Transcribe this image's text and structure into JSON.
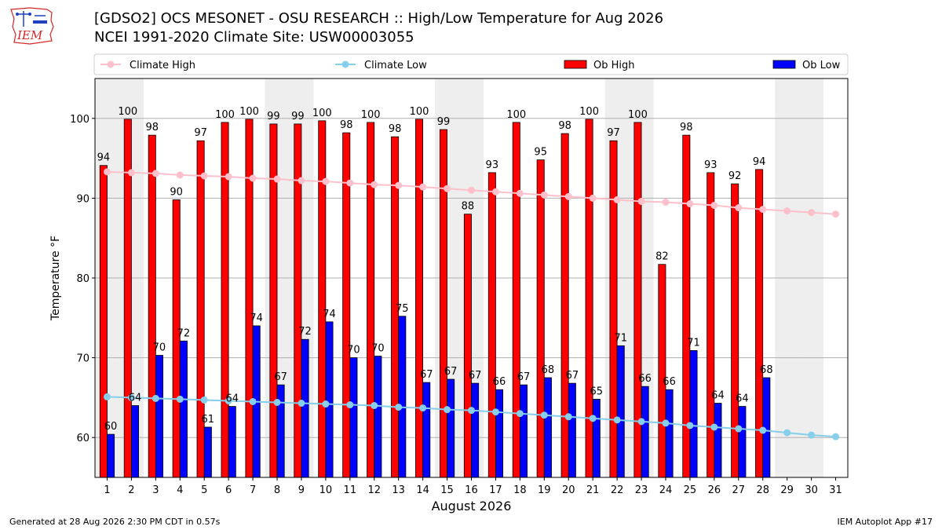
{
  "header": {
    "title_line1": "[GDSO2] OCS MESONET - OSU RESEARCH :: High/Low Temperature for Aug 2026",
    "title_line2": "NCEI 1991-2020 Climate Site: USW00003055",
    "logo_text": "IEM"
  },
  "footer": {
    "left": "Generated at 28 Aug 2026 2:30 PM CDT in 0.57s",
    "right": "IEM Autoplot App #17"
  },
  "colors": {
    "ob_high": "#ff0000",
    "ob_low": "#0000ff",
    "climate_high": "#ffc0cb",
    "climate_low": "#87ceeb",
    "weekend_shade": "#eeeeee",
    "logo": "#d62728"
  },
  "chart_data": {
    "type": "bar",
    "xlabel": "August 2026",
    "ylabel": "Temperature °F",
    "ylim": [
      55,
      105
    ],
    "yticks": [
      60,
      70,
      80,
      90,
      100
    ],
    "grid": "horizontal",
    "legend_position": "top",
    "categories": [
      "1",
      "2",
      "3",
      "4",
      "5",
      "6",
      "7",
      "8",
      "9",
      "10",
      "11",
      "12",
      "13",
      "14",
      "15",
      "16",
      "17",
      "18",
      "19",
      "20",
      "21",
      "22",
      "23",
      "24",
      "25",
      "26",
      "27",
      "28",
      "29",
      "30",
      "31"
    ],
    "shaded_days": [
      1,
      2,
      8,
      9,
      15,
      16,
      22,
      23,
      29,
      30
    ],
    "series": [
      {
        "name": "Climate High",
        "kind": "line",
        "values": [
          93.3,
          93.2,
          93.1,
          92.9,
          92.8,
          92.7,
          92.5,
          92.4,
          92.2,
          92.1,
          91.9,
          91.7,
          91.6,
          91.4,
          91.2,
          91.0,
          90.8,
          90.6,
          90.4,
          90.2,
          90.0,
          89.8,
          89.6,
          89.5,
          89.3,
          89.1,
          88.8,
          88.6,
          88.4,
          88.2,
          88.0
        ]
      },
      {
        "name": "Climate Low",
        "kind": "line",
        "values": [
          65.1,
          65.0,
          64.9,
          64.8,
          64.7,
          64.6,
          64.5,
          64.4,
          64.3,
          64.2,
          64.1,
          64.0,
          63.8,
          63.7,
          63.5,
          63.4,
          63.2,
          63.0,
          62.8,
          62.6,
          62.4,
          62.2,
          62.0,
          61.8,
          61.5,
          61.3,
          61.1,
          60.9,
          60.6,
          60.3,
          60.1
        ]
      },
      {
        "name": "Ob High",
        "kind": "bar",
        "values": [
          94,
          100,
          98,
          90,
          97,
          100,
          100,
          99,
          99,
          100,
          98,
          100,
          98,
          100,
          99,
          88,
          93,
          100,
          95,
          98,
          100,
          97,
          100,
          82,
          98,
          93,
          92,
          94,
          null,
          null,
          null
        ],
        "raw": [
          94.1,
          99.9,
          97.9,
          89.8,
          97.2,
          99.5,
          99.9,
          99.3,
          99.3,
          99.7,
          98.2,
          99.5,
          97.7,
          99.9,
          98.6,
          88.0,
          93.2,
          99.5,
          94.8,
          98.1,
          99.9,
          97.2,
          99.5,
          81.7,
          97.9,
          93.2,
          91.8,
          93.6,
          null,
          null,
          null
        ]
      },
      {
        "name": "Ob Low",
        "kind": "bar",
        "values": [
          60,
          64,
          70,
          72,
          61,
          64,
          74,
          67,
          72,
          74,
          70,
          70,
          75,
          67,
          67,
          67,
          66,
          67,
          68,
          67,
          65,
          71,
          66,
          66,
          71,
          64,
          64,
          68,
          null,
          null,
          null
        ],
        "raw": [
          60.4,
          64.0,
          70.3,
          72.1,
          61.3,
          63.9,
          74.0,
          66.6,
          72.3,
          74.5,
          70.0,
          70.2,
          75.2,
          66.9,
          67.3,
          66.8,
          66.0,
          66.6,
          67.5,
          66.8,
          64.8,
          71.5,
          66.4,
          66.0,
          70.9,
          64.3,
          63.9,
          67.5,
          null,
          null,
          null
        ]
      }
    ]
  }
}
